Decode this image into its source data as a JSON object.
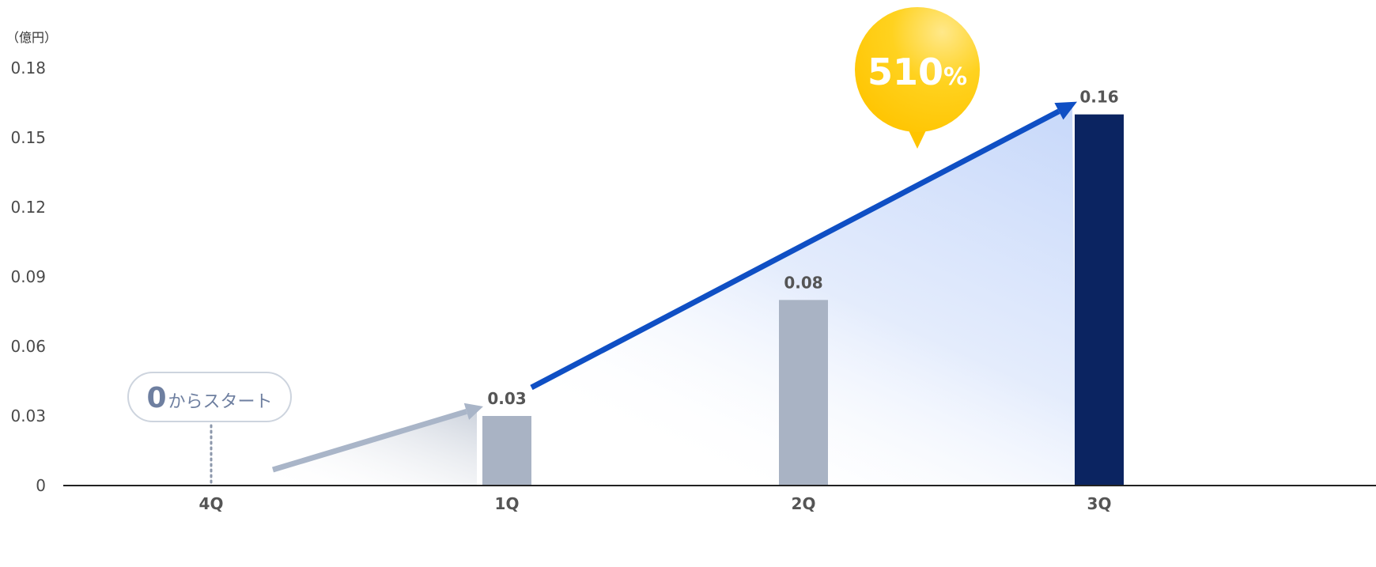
{
  "chart_data": {
    "type": "bar",
    "unit_label": "（億円）",
    "categories": [
      "4Q",
      "1Q",
      "2Q",
      "3Q"
    ],
    "values": [
      0,
      0.03,
      0.08,
      0.16
    ],
    "value_labels": [
      "",
      "0.03",
      "0.08",
      "0.16"
    ],
    "y_ticks": [
      "0",
      "0.03",
      "0.06",
      "0.09",
      "0.12",
      "0.15",
      "0.18"
    ],
    "y_tick_values": [
      0,
      0.03,
      0.06,
      0.09,
      0.12,
      0.15,
      0.18
    ],
    "ylim": [
      0,
      0.18
    ],
    "grid": false,
    "bar_colors": [
      "#a9b3c4",
      "#a9b3c4",
      "#a9b3c4",
      "#0b2461"
    ],
    "growth_badge": {
      "number": "510",
      "suffix": "%"
    },
    "start_callout": {
      "big": "0",
      "small": "からスタート"
    },
    "colors": {
      "arrow": "#0f4fc4",
      "arrow_small": "#a9b5c8",
      "bubble": "#ffc61a",
      "axis": "#222222"
    }
  }
}
